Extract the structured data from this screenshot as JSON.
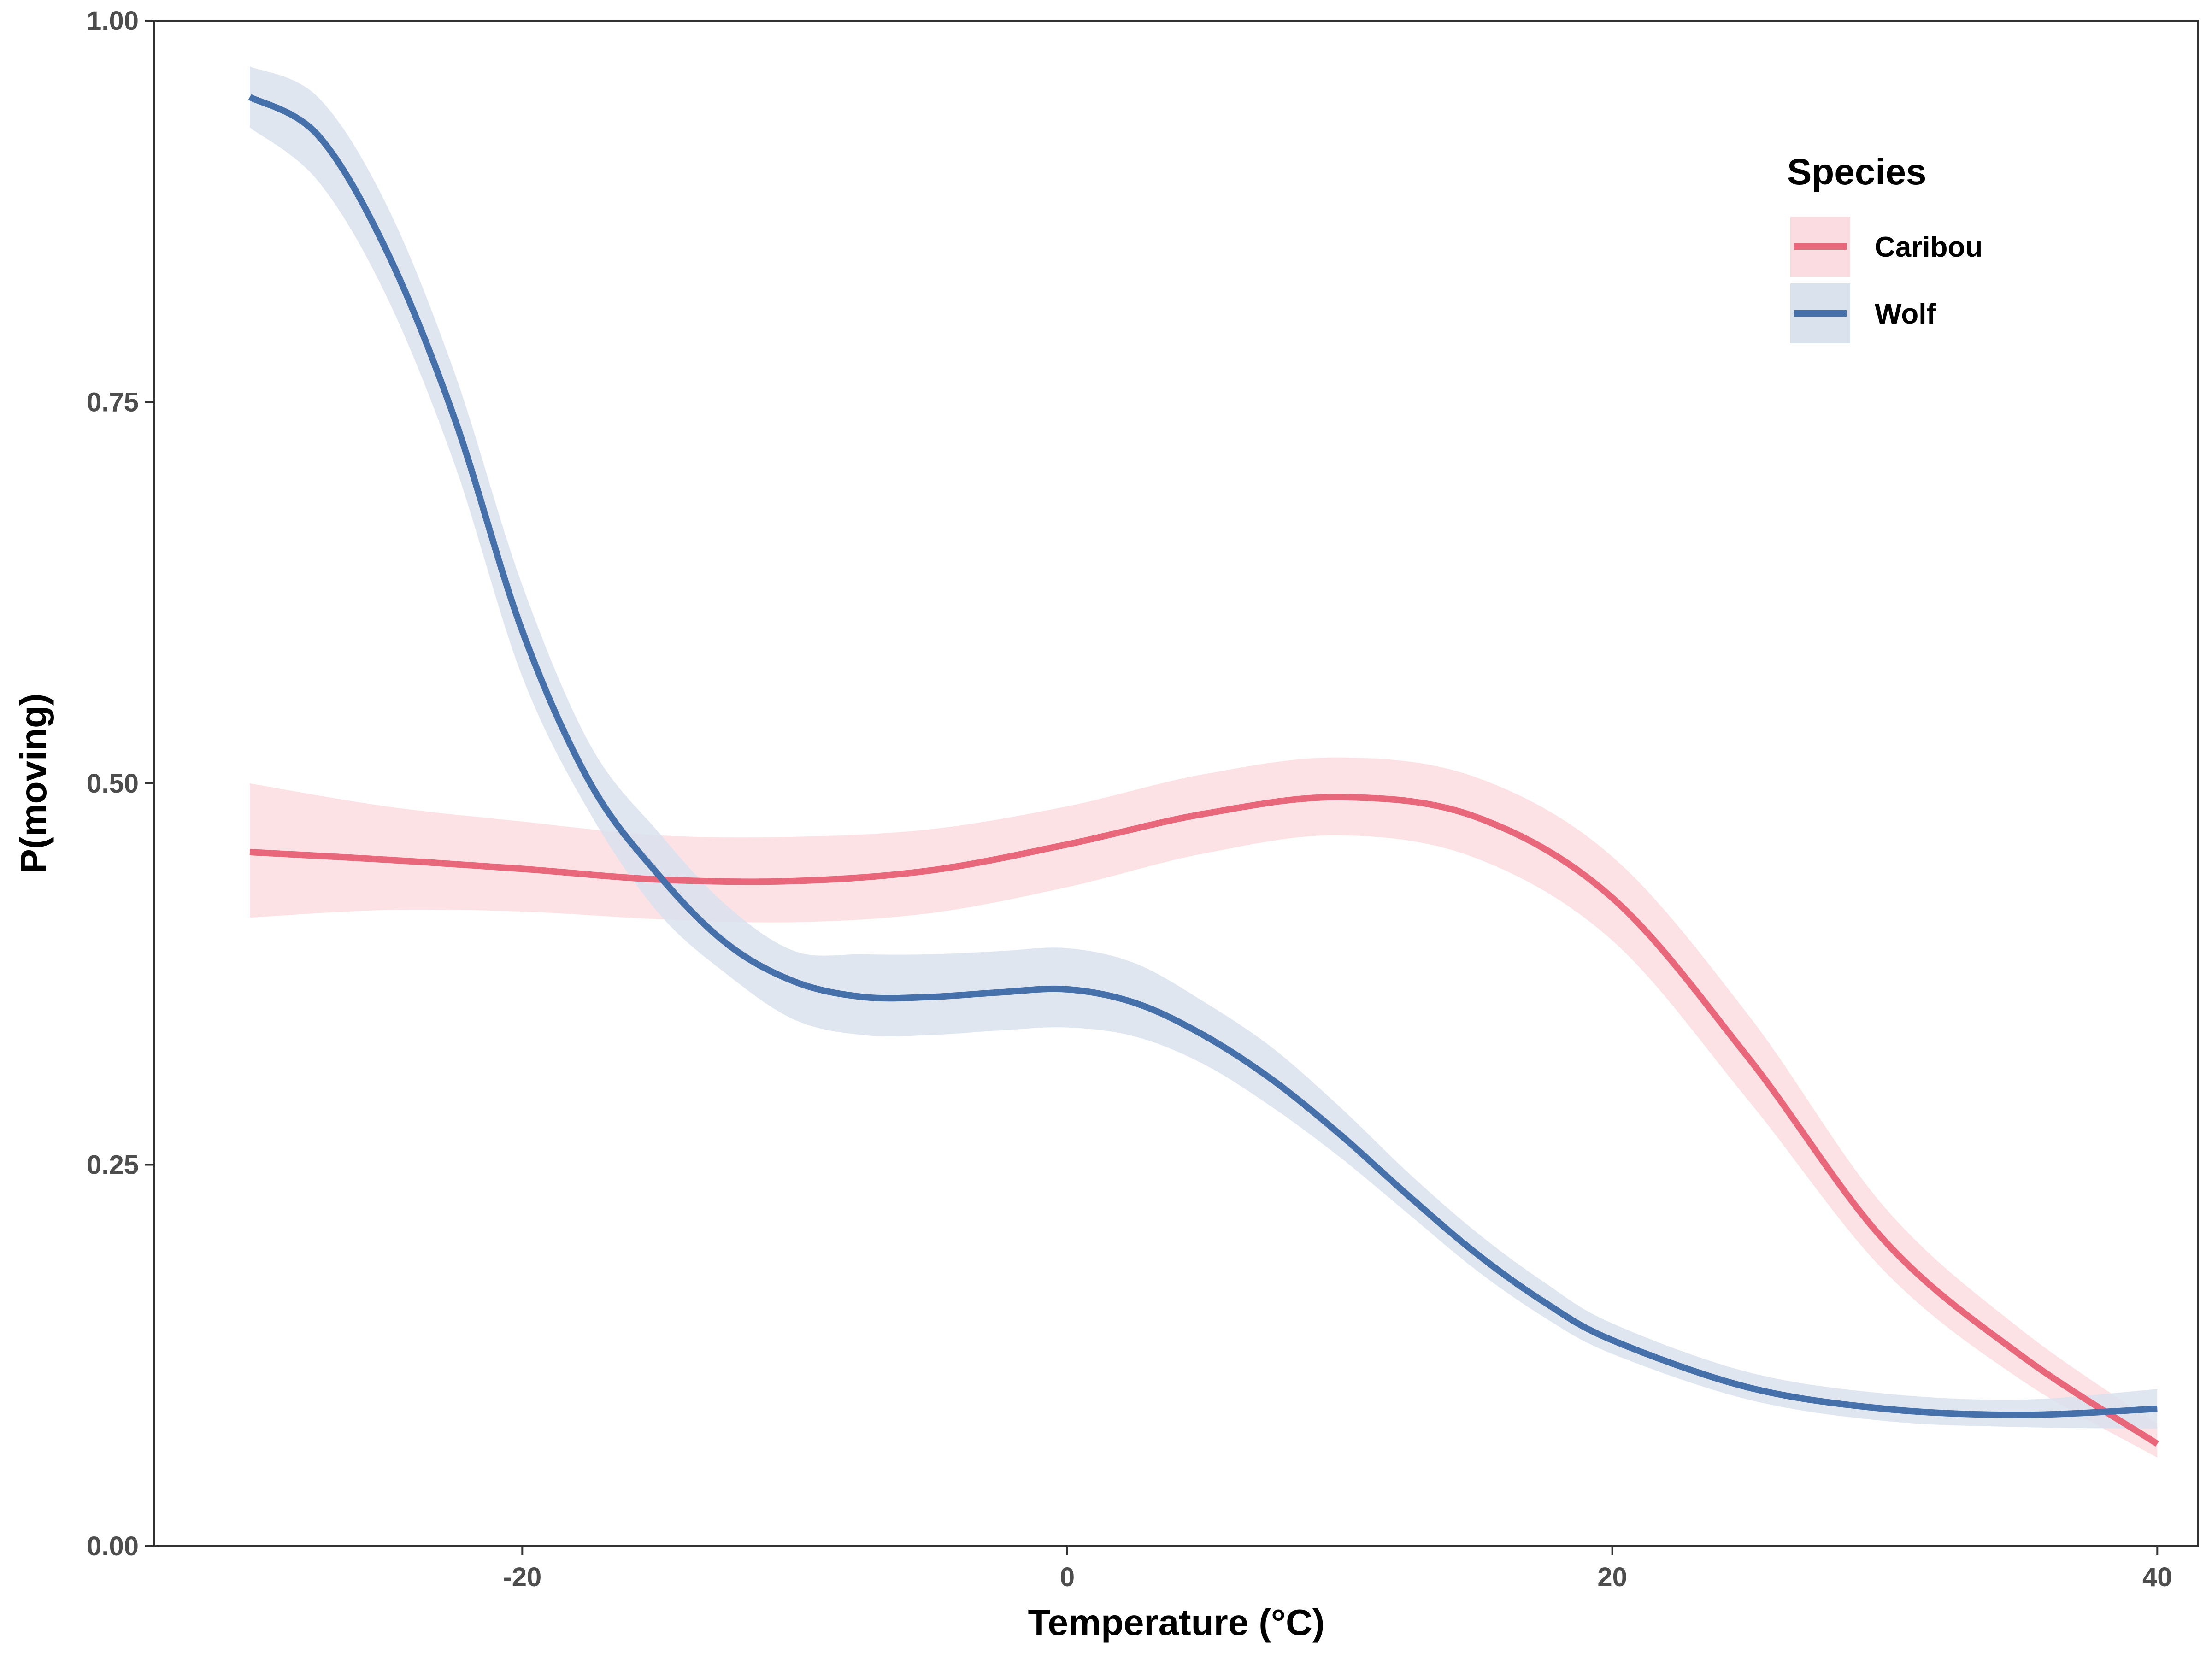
{
  "chart_data": {
    "type": "line",
    "xlabel": "Temperature (°C)",
    "ylabel": "P(moving)",
    "xlim": [
      -33.5,
      41.5
    ],
    "ylim": [
      0,
      1
    ],
    "x_ticks": [
      -20,
      0,
      20,
      40
    ],
    "x_tick_labels": [
      "-20",
      "0",
      "20",
      "40"
    ],
    "y_ticks": [
      0,
      0.25,
      0.5,
      0.75,
      1
    ],
    "y_tick_labels": [
      "0.00",
      "0.25",
      "0.50",
      "0.75",
      "1.00"
    ],
    "grid": false,
    "legend": {
      "title": "Species",
      "position": "top-right"
    },
    "series": [
      {
        "name": "Caribou",
        "color": "#e8677a",
        "band_color": "#fbdde1",
        "x": [
          -30,
          -25,
          -20,
          -15,
          -10,
          -5,
          0,
          5,
          10,
          15,
          20,
          25,
          30,
          35,
          40
        ],
        "y": [
          0.455,
          0.45,
          0.444,
          0.437,
          0.436,
          0.443,
          0.46,
          0.48,
          0.491,
          0.478,
          0.425,
          0.32,
          0.2,
          0.125,
          0.067
        ],
        "lower": [
          0.412,
          0.417,
          0.416,
          0.411,
          0.409,
          0.415,
          0.432,
          0.454,
          0.466,
          0.451,
          0.397,
          0.292,
          0.18,
          0.109,
          0.058
        ],
        "upper": [
          0.5,
          0.485,
          0.475,
          0.466,
          0.465,
          0.47,
          0.485,
          0.506,
          0.517,
          0.504,
          0.452,
          0.348,
          0.222,
          0.142,
          0.08
        ]
      },
      {
        "name": "Wolf",
        "color": "#4570a9",
        "band_color": "#d9e2ed",
        "x": [
          -30,
          -27.5,
          -25,
          -22.5,
          -20,
          -17.5,
          -15,
          -12.5,
          -10,
          -7.5,
          -5,
          -2.5,
          0,
          2.5,
          5,
          7.5,
          10,
          12.5,
          15,
          17.5,
          20,
          25,
          30,
          35,
          40
        ],
        "y": [
          0.95,
          0.925,
          0.85,
          0.74,
          0.6,
          0.5,
          0.44,
          0.395,
          0.37,
          0.36,
          0.36,
          0.363,
          0.365,
          0.356,
          0.335,
          0.306,
          0.27,
          0.23,
          0.192,
          0.16,
          0.135,
          0.104,
          0.09,
          0.086,
          0.09
        ],
        "lower": [
          0.93,
          0.895,
          0.82,
          0.71,
          0.57,
          0.48,
          0.415,
          0.375,
          0.345,
          0.335,
          0.335,
          0.338,
          0.34,
          0.334,
          0.316,
          0.288,
          0.255,
          0.218,
          0.181,
          0.15,
          0.126,
          0.096,
          0.082,
          0.078,
          0.077
        ],
        "upper": [
          0.97,
          0.95,
          0.88,
          0.77,
          0.63,
          0.525,
          0.468,
          0.42,
          0.39,
          0.388,
          0.388,
          0.39,
          0.392,
          0.382,
          0.357,
          0.327,
          0.288,
          0.245,
          0.206,
          0.173,
          0.146,
          0.114,
          0.1,
          0.096,
          0.103
        ]
      }
    ]
  }
}
